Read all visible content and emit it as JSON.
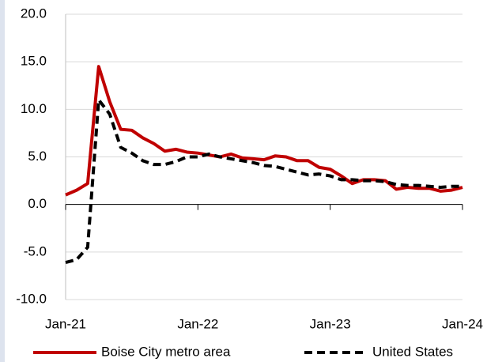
{
  "chart_data": {
    "type": "line",
    "categories": [
      "Jan-21",
      null,
      null,
      null,
      null,
      null,
      null,
      null,
      null,
      null,
      null,
      null,
      "Jan-22",
      null,
      null,
      null,
      null,
      null,
      null,
      null,
      null,
      null,
      null,
      null,
      "Jan-23",
      null,
      null,
      null,
      null,
      null,
      null,
      null,
      null,
      null,
      null,
      null,
      "Jan-24"
    ],
    "series": [
      {
        "name": "Boise City metro area",
        "color": "#c00000",
        "dash": false,
        "values": [
          1.0,
          1.5,
          2.2,
          14.5,
          10.8,
          7.9,
          7.8,
          7.0,
          6.4,
          5.6,
          5.8,
          5.5,
          5.4,
          5.2,
          5.0,
          5.3,
          4.9,
          4.8,
          4.7,
          5.1,
          5.0,
          4.6,
          4.6,
          3.9,
          3.7,
          3.0,
          2.2,
          2.6,
          2.6,
          2.5,
          1.6,
          1.8,
          1.7,
          1.7,
          1.4,
          1.5,
          1.8
        ]
      },
      {
        "name": "United States",
        "color": "#000000",
        "dash": true,
        "values": [
          -6.1,
          -5.8,
          -4.5,
          11.0,
          9.5,
          6.0,
          5.4,
          4.6,
          4.2,
          4.2,
          4.5,
          5.0,
          5.0,
          5.3,
          5.0,
          4.8,
          4.6,
          4.4,
          4.1,
          4.0,
          3.7,
          3.4,
          3.1,
          3.2,
          3.0,
          2.6,
          2.6,
          2.5,
          2.5,
          2.4,
          2.1,
          2.0,
          2.0,
          1.9,
          1.8,
          1.9,
          1.9
        ]
      }
    ],
    "ylim": [
      -10,
      20
    ],
    "yticks": [
      {
        "value": -10,
        "label": "-10.0"
      },
      {
        "value": -5,
        "label": "-5.0"
      },
      {
        "value": 0,
        "label": "0.0"
      },
      {
        "value": 5,
        "label": "5.0"
      },
      {
        "value": 10,
        "label": "10.0"
      },
      {
        "value": 15,
        "label": "15.0"
      },
      {
        "value": 20,
        "label": "20.0"
      }
    ],
    "grid": true,
    "legend": "bottom"
  }
}
